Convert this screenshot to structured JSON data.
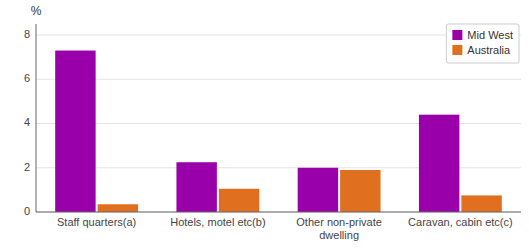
{
  "chart_data": {
    "type": "bar",
    "categories": [
      "Staff quarters(a)",
      "Hotels, motel etc(b)",
      "Other non-private dwelling",
      "Caravan, cabin etc(c)"
    ],
    "series": [
      {
        "name": "Mid West",
        "color": "#9900aa",
        "values": [
          7.3,
          2.25,
          2.0,
          4.4
        ]
      },
      {
        "name": "Australia",
        "color": "#e07020",
        "values": [
          0.35,
          1.05,
          1.9,
          0.75
        ]
      }
    ],
    "ylabel": "%",
    "ylim": [
      0,
      8.5
    ],
    "yticks": [
      0,
      2,
      4,
      6,
      8
    ],
    "grid": true,
    "legend": "upper right"
  }
}
